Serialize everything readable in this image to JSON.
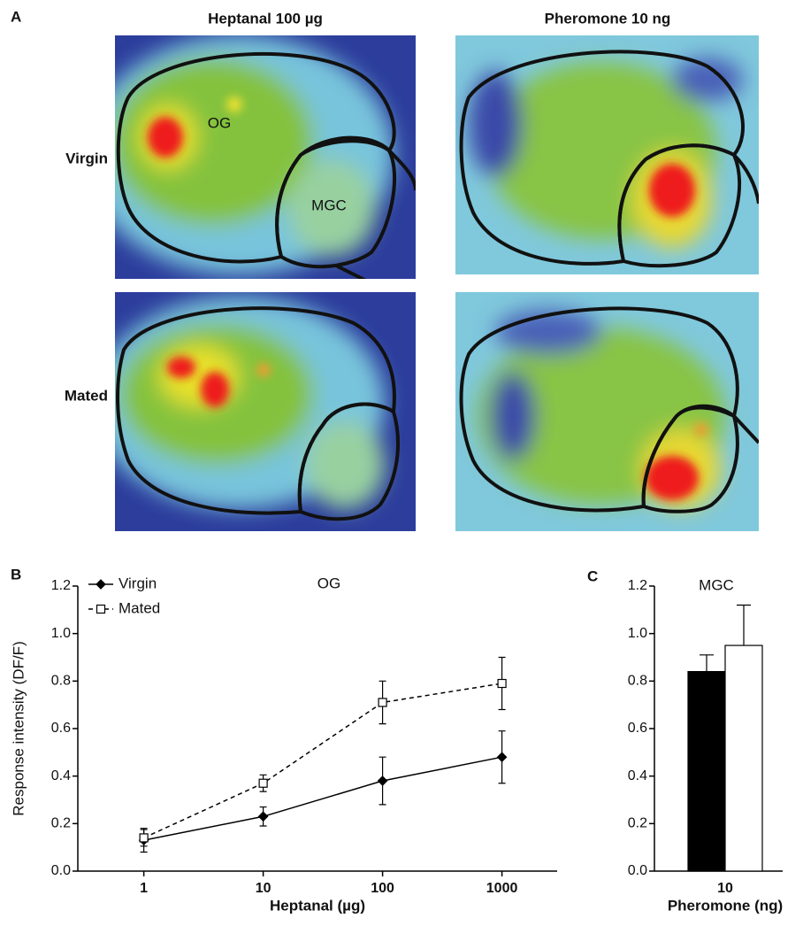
{
  "figure": {
    "panel_labels": [
      "A",
      "B",
      "C"
    ],
    "columns": [
      "Heptanal 100 µg",
      "Pheromone 10 ng"
    ],
    "rows": [
      "Virgin",
      "Mated"
    ],
    "regions": [
      "OG",
      "MGC"
    ]
  },
  "chart_data": [
    {
      "type": "line",
      "title": "OG",
      "xlabel": "Heptanal (µg)",
      "ylabel": "Response intensity (DF/F)",
      "x": [
        1,
        10,
        100,
        1000
      ],
      "xscale": "log",
      "xlim": [
        0.28,
        2900
      ],
      "xticks": [
        1,
        10,
        100,
        1000
      ],
      "ylim": [
        0,
        1.2
      ],
      "yticks": [
        {
          "value": 0,
          "label": "0.0"
        },
        0.2,
        0.4,
        0.6,
        0.8,
        {
          "value": 1,
          "label": "1.0"
        },
        1.2
      ],
      "legend": "upper left",
      "series": [
        {
          "name": "Virgin",
          "color": "#000000",
          "marker": "diamond",
          "marker_fill": "#000000",
          "dash": false,
          "values": [
            0.13,
            0.23,
            0.38,
            0.48
          ],
          "errors": [
            0.05,
            0.04,
            0.1,
            0.11
          ]
        },
        {
          "name": "Mated",
          "color": "#000000",
          "marker": "square",
          "marker_fill": "#ffffff",
          "dash": true,
          "values": [
            0.14,
            0.37,
            0.71,
            0.79
          ],
          "errors": [
            0.035,
            0.035,
            0.09,
            0.11
          ]
        }
      ]
    },
    {
      "type": "bar",
      "title": "MGC",
      "xlabel": "Pheromone (ng)",
      "categories": [
        "10"
      ],
      "ylim": [
        0,
        1.2
      ],
      "yticks": [
        {
          "value": 0,
          "label": "0.0"
        },
        0.2,
        0.4,
        0.6,
        0.8,
        {
          "value": 1,
          "label": "1.0"
        },
        1.2
      ],
      "series": [
        {
          "color": "#000000",
          "values": [
            0.84
          ],
          "errors": [
            0.07
          ]
        },
        {
          "color": "#ffffff",
          "values": [
            0.95
          ],
          "errors": [
            0.17
          ]
        }
      ]
    }
  ]
}
